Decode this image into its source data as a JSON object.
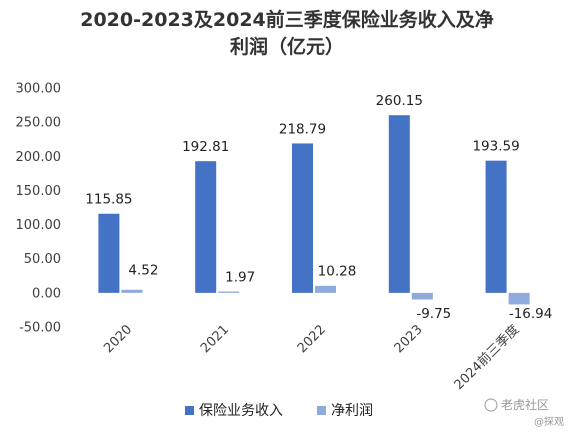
{
  "chart_data": {
    "type": "bar",
    "title_line1": "2020-2023及2024前三季度保险业务收入及净",
    "title_line2": "利润（亿元）",
    "categories": [
      "2020",
      "2021",
      "2022",
      "2023",
      "2024前三季度"
    ],
    "series": [
      {
        "name": "保险业务收入",
        "values": [
          115.85,
          192.81,
          218.79,
          260.15,
          193.59
        ],
        "color": "#4472C4"
      },
      {
        "name": "净利润",
        "values": [
          4.52,
          1.97,
          10.28,
          -9.75,
          -16.94
        ],
        "color": "#8FAADC"
      }
    ],
    "value_labels": {
      "series0": [
        "115.85",
        "192.81",
        "218.79",
        "260.15",
        "193.59"
      ],
      "series1": [
        "4.52",
        "1.97",
        "10.28",
        "-9.75",
        "-16.94"
      ]
    },
    "y_ticks": [
      "300.00",
      "250.00",
      "200.00",
      "150.00",
      "100.00",
      "50.00",
      "0.00",
      "-50.00"
    ],
    "ylim": [
      -50,
      300
    ],
    "grid": false,
    "legend_position": "bottom"
  },
  "watermark": {
    "text": "老虎社区",
    "subtext": "@探观",
    "icon": "tiger-paw-icon"
  }
}
